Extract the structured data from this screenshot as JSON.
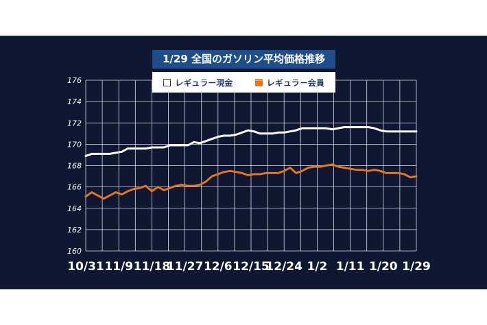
{
  "chart_data": {
    "type": "line",
    "title": "1/29 全国のガソリン平均価格推移",
    "xlabel": "",
    "ylabel": "",
    "ylim": [
      160,
      176
    ],
    "yticks": [
      "160",
      "162",
      "164",
      "166",
      "168",
      "170",
      "172",
      "174",
      "176"
    ],
    "xticks": [
      "10/31",
      "11/9",
      "11/18",
      "11/27",
      "12/6",
      "12/15",
      "12/24",
      "1/2",
      "1/11",
      "1/20",
      "1/29"
    ],
    "grid": true,
    "legend_position": "top",
    "series": [
      {
        "name": "レギュラー現金",
        "color": "#ffffff",
        "values": [
          168.9,
          169.1,
          169.1,
          169.1,
          169.1,
          169.2,
          169.3,
          169.6,
          169.6,
          169.6,
          169.6,
          169.7,
          169.7,
          169.7,
          169.9,
          169.9,
          169.9,
          169.9,
          170.2,
          170.1,
          170.3,
          170.5,
          170.7,
          170.8,
          170.8,
          170.9,
          171.1,
          171.3,
          171.2,
          171.0,
          171.0,
          171.0,
          171.1,
          171.1,
          171.2,
          171.3,
          171.5,
          171.5,
          171.5,
          171.5,
          171.5,
          171.4,
          171.5,
          171.6,
          171.6,
          171.6,
          171.6,
          171.6,
          171.5,
          171.3,
          171.2,
          171.2,
          171.2,
          171.2,
          171.2,
          171.2
        ]
      },
      {
        "name": "レギュラー会員",
        "color": "#e57620",
        "values": [
          165.1,
          165.5,
          165.2,
          164.9,
          165.2,
          165.5,
          165.3,
          165.6,
          165.8,
          165.9,
          166.1,
          165.6,
          166.0,
          165.7,
          165.9,
          166.1,
          166.2,
          166.1,
          166.1,
          166.2,
          166.5,
          167.0,
          167.2,
          167.4,
          167.5,
          167.4,
          167.3,
          167.1,
          167.2,
          167.2,
          167.3,
          167.3,
          167.3,
          167.5,
          167.8,
          167.3,
          167.5,
          167.8,
          167.9,
          167.9,
          168.0,
          168.1,
          167.9,
          167.8,
          167.7,
          167.6,
          167.6,
          167.5,
          167.6,
          167.5,
          167.3,
          167.3,
          167.3,
          167.2,
          166.9,
          167.0
        ]
      }
    ]
  },
  "colors": {
    "background": "#0f1733",
    "title_bg": "#1e4d8c",
    "grid": "#ffffff",
    "series_cash": "#ffffff",
    "series_member": "#e57620"
  }
}
